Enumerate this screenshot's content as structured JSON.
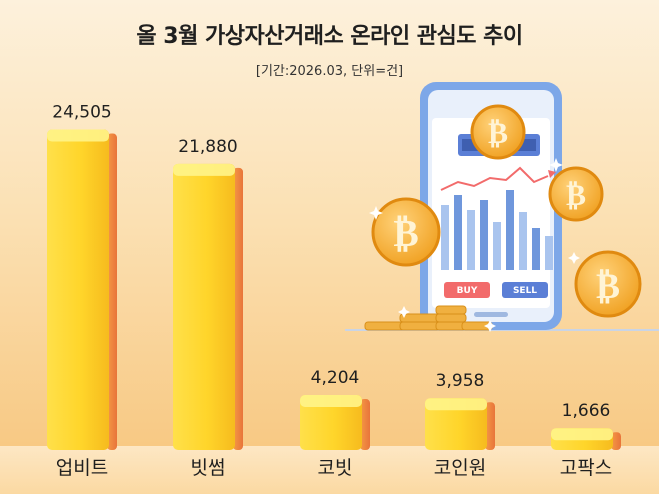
{
  "chart_data": {
    "type": "bar",
    "title": "올 3월 가상자산거래소 온라인 관심도 추이",
    "subtitle": "[기간:2026.03, 단위=건]",
    "categories": [
      "업비트",
      "빗썸",
      "코빗",
      "코인원",
      "고팍스"
    ],
    "values": [
      24505,
      21880,
      4204,
      3958,
      1666
    ],
    "value_labels": [
      "24,505",
      "21,880",
      "4,204",
      "3,958",
      "1,666"
    ],
    "ylim": [
      0,
      26000
    ],
    "grid": false,
    "legend": "none"
  },
  "illustration": {
    "buy_label": "BUY",
    "sell_label": "SELL",
    "coin_symbol": "₿"
  },
  "colors": {
    "bar_top": "#fff27a",
    "bar_mid": "#ffd633",
    "bar_side": "#f28a3c",
    "phone_body": "#8fb7f0",
    "phone_screen": "#ffffff",
    "coin": "#f5a623",
    "buy": "#f26b6b",
    "sell": "#5b7fd6"
  }
}
